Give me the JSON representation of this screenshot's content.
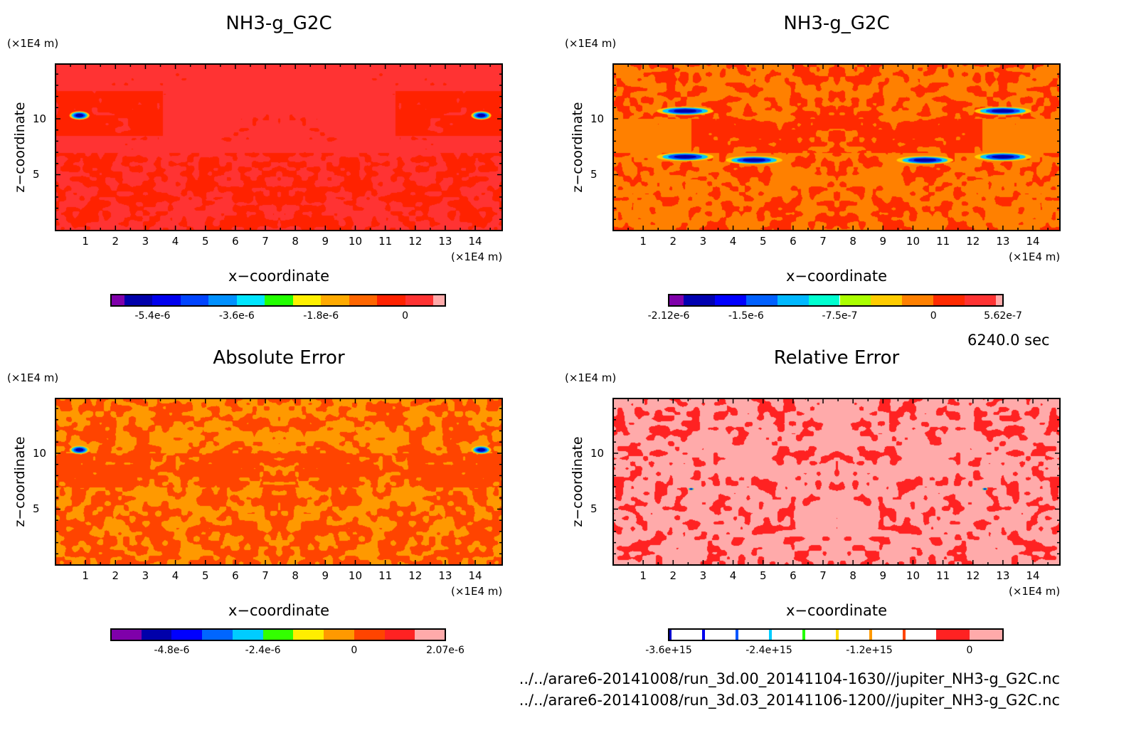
{
  "time_label": "6240.0 sec",
  "file_paths": [
    "../../arare6-20141008/run_3d.00_20141104-1630//jupiter_NH3-g_G2C.nc",
    "../../arare6-20141008/run_3d.03_20141106-1200//jupiter_NH3-g_G2C.nc"
  ],
  "chart_data": [
    {
      "type": "heatmap",
      "title": "NH3-g_G2C",
      "xlabel": "x-coordinate",
      "ylabel": "z-coordinate",
      "x_unit": "(×1E4 m)",
      "y_unit": "(×1E4 m)",
      "xlim": [
        0,
        14.9
      ],
      "ylim": [
        0,
        14.9
      ],
      "x_ticks": [
        "1",
        "2",
        "3",
        "4",
        "5",
        "6",
        "7",
        "8",
        "9",
        "10",
        "11",
        "12",
        "13",
        "14"
      ],
      "y_ticks": [
        "5",
        "10"
      ],
      "field_colors": [
        "#ff3333",
        "#ff2200"
      ],
      "colorbar": {
        "colors": [
          "#7f00aa",
          "#0000aa",
          "#0000ee",
          "#0044ff",
          "#0090ff",
          "#00e5ff",
          "#22ff00",
          "#fff000",
          "#ffaa00",
          "#ff6600",
          "#ff2200",
          "#ff3333",
          "#ffaaaa"
        ],
        "ticks": [
          {
            "label": "-5.4e-6",
            "boundary": 2
          },
          {
            "label": "-3.6e-6",
            "boundary": 5
          },
          {
            "label": "-1.8e-6",
            "boundary": 8
          },
          {
            "label": "0",
            "boundary": 11
          }
        ]
      }
    },
    {
      "type": "heatmap",
      "title": "NH3-g_G2C",
      "xlabel": "x-coordinate",
      "ylabel": "z-coordinate",
      "x_unit": "(×1E4 m)",
      "y_unit": "(×1E4 m)",
      "xlim": [
        0,
        14.9
      ],
      "ylim": [
        0,
        14.9
      ],
      "x_ticks": [
        "1",
        "2",
        "3",
        "4",
        "5",
        "6",
        "7",
        "8",
        "9",
        "10",
        "11",
        "12",
        "13",
        "14"
      ],
      "y_ticks": [
        "5",
        "10"
      ],
      "field_colors": [
        "#ff8000",
        "#ff2a00"
      ],
      "colorbar": {
        "colors": [
          "#7f00aa",
          "#0000b0",
          "#0000ff",
          "#0060ff",
          "#00b8ff",
          "#00ffd0",
          "#aaff00",
          "#ffcc00",
          "#ff8000",
          "#ff2a00",
          "#ff3333",
          "#ffaaaa"
        ],
        "ticks": [
          {
            "label": "-2.12e-6",
            "boundary": 0
          },
          {
            "label": "-1.5e-6",
            "boundary": 3
          },
          {
            "label": "-7.5e-7",
            "boundary": 6
          },
          {
            "label": "0",
            "boundary": 9
          },
          {
            "label": "5.62e-7",
            "boundary": 12
          }
        ]
      }
    },
    {
      "type": "heatmap",
      "title": "Absolute Error",
      "xlabel": "x-coordinate",
      "ylabel": "z-coordinate",
      "x_unit": "(×1E4 m)",
      "y_unit": "(×1E4 m)",
      "xlim": [
        0,
        14.9
      ],
      "ylim": [
        0,
        14.9
      ],
      "x_ticks": [
        "1",
        "2",
        "3",
        "4",
        "5",
        "6",
        "7",
        "8",
        "9",
        "10",
        "11",
        "12",
        "13",
        "14"
      ],
      "y_ticks": [
        "5",
        "10"
      ],
      "field_colors": [
        "#ff9900",
        "#ff4400"
      ],
      "colorbar": {
        "colors": [
          "#7f00aa",
          "#0000aa",
          "#0000ff",
          "#0066ff",
          "#00ccff",
          "#33ff00",
          "#ffee00",
          "#ff9900",
          "#ff4400",
          "#ff2222",
          "#ffaaaa"
        ],
        "ticks": [
          {
            "label": "-4.8e-6",
            "boundary": 2
          },
          {
            "label": "-2.4e-6",
            "boundary": 5
          },
          {
            "label": "0",
            "boundary": 8
          },
          {
            "label": "2.07e-6",
            "boundary": 11
          }
        ]
      }
    },
    {
      "type": "heatmap",
      "title": "Relative Error",
      "xlabel": "x-coordinate",
      "ylabel": "z-coordinate",
      "x_unit": "(×1E4 m)",
      "y_unit": "(×1E4 m)",
      "xlim": [
        0,
        14.9
      ],
      "ylim": [
        0,
        14.9
      ],
      "x_ticks": [
        "1",
        "2",
        "3",
        "4",
        "5",
        "6",
        "7",
        "8",
        "9",
        "10",
        "11",
        "12",
        "13",
        "14"
      ],
      "y_ticks": [
        "5",
        "10"
      ],
      "field_colors": [
        "#ffaaaa",
        "#ff2222"
      ],
      "colorbar": {
        "colors": [
          "#0000cc",
          "#0000ee",
          "#0055ff",
          "#00ccff",
          "#22ff00",
          "#ffdd00",
          "#ff9900",
          "#ff4400",
          "#ff2222",
          "#ffaaaa"
        ],
        "stripe_only": [
          true,
          true,
          true,
          true,
          true,
          true,
          true,
          true,
          false,
          false
        ],
        "ticks": [
          {
            "label": "-3.6e+15",
            "boundary": 0
          },
          {
            "label": "-2.4e+15",
            "boundary": 3
          },
          {
            "label": "-1.2e+15",
            "boundary": 6
          },
          {
            "label": "0",
            "boundary": 9
          }
        ]
      }
    }
  ]
}
